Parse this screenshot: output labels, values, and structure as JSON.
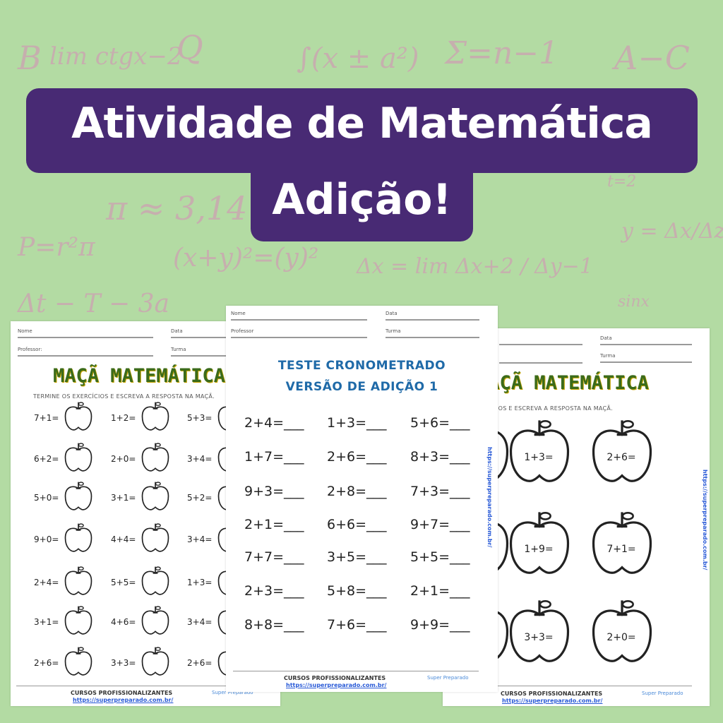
{
  "colors": {
    "background": "#b3dba3",
    "banner": "#482a74",
    "green_title": "#3b6b1a",
    "blue_title": "#1f6aa8"
  },
  "background_doodles": [
    "B",
    "lim ctgx−2",
    "Q",
    "∫(x ± a²)",
    "Σ=n−1",
    "A−C",
    "π ≈ 3,14",
    "P=r²π",
    "(x+y)²=(y)²",
    "Δx = lim Δx+2 / Δy−1",
    "y = Δx/Δz",
    "t=2",
    "sinx",
    "Δt − T − 3a"
  ],
  "banner": {
    "line1": "Atividade de Matemática",
    "line2": "Adição!"
  },
  "footer": {
    "text": "CURSOS PROFISSIONALIZANTES",
    "url": "https://superpreparado.com.br/",
    "logo": "Super Preparado"
  },
  "left_sheet": {
    "fields": {
      "name": "Nome",
      "date": "Data",
      "teacher": "Professor:",
      "class": "Turma"
    },
    "title": "MAÇÃ MATEMÁTICA",
    "instruction": "TERMINE OS EXERCÍCIOS E ESCREVA A RESPOSTA NA MAÇÃ.",
    "rows": [
      [
        "7+1=",
        "1+2=",
        "5+3="
      ],
      [
        "6+2=",
        "2+0=",
        "3+4="
      ],
      [
        "5+0=",
        "3+1=",
        "5+2="
      ],
      [
        "9+0=",
        "4+4=",
        "3+4="
      ],
      [
        "2+4=",
        "5+5=",
        "1+3="
      ],
      [
        "3+1=",
        "4+6=",
        "3+4="
      ],
      [
        "2+6=",
        "3+3=",
        "2+6="
      ]
    ]
  },
  "center_sheet": {
    "fields": {
      "name": "Nome",
      "date": "Data",
      "teacher": "Professor",
      "class": "Turma"
    },
    "title1": "TESTE CRONOMETRADO",
    "title2": "VERSÃO DE ADIÇÃO 1",
    "rows": [
      [
        "2+4=___",
        "1+3=___",
        "5+6=___"
      ],
      [
        "1+7=___",
        "2+6=___",
        "8+3=___"
      ],
      [
        "9+3=___",
        "2+8=___",
        "7+3=___"
      ],
      [
        "2+1=___",
        "6+6=___",
        "9+7=___"
      ],
      [
        "7+7=___",
        "3+5=___",
        "5+5=___"
      ],
      [
        "2+3=___",
        "5+8=___",
        "2+1=___"
      ],
      [
        "8+8=___",
        "7+6=___",
        "9+9=___"
      ]
    ]
  },
  "right_sheet": {
    "fields": {
      "date": "Data",
      "class": "Turma"
    },
    "title": "MAÇÃ MATEMÁTICA",
    "instruction": "TERMINE OS EXERCÍCIOS E ESCREVA A RESPOSTA NA MAÇÃ.",
    "rows": [
      [
        "=",
        "1+3=",
        "2+6="
      ],
      [
        "=",
        "1+9=",
        "7+1="
      ],
      [
        "=",
        "3+3=",
        "2+0="
      ]
    ]
  }
}
